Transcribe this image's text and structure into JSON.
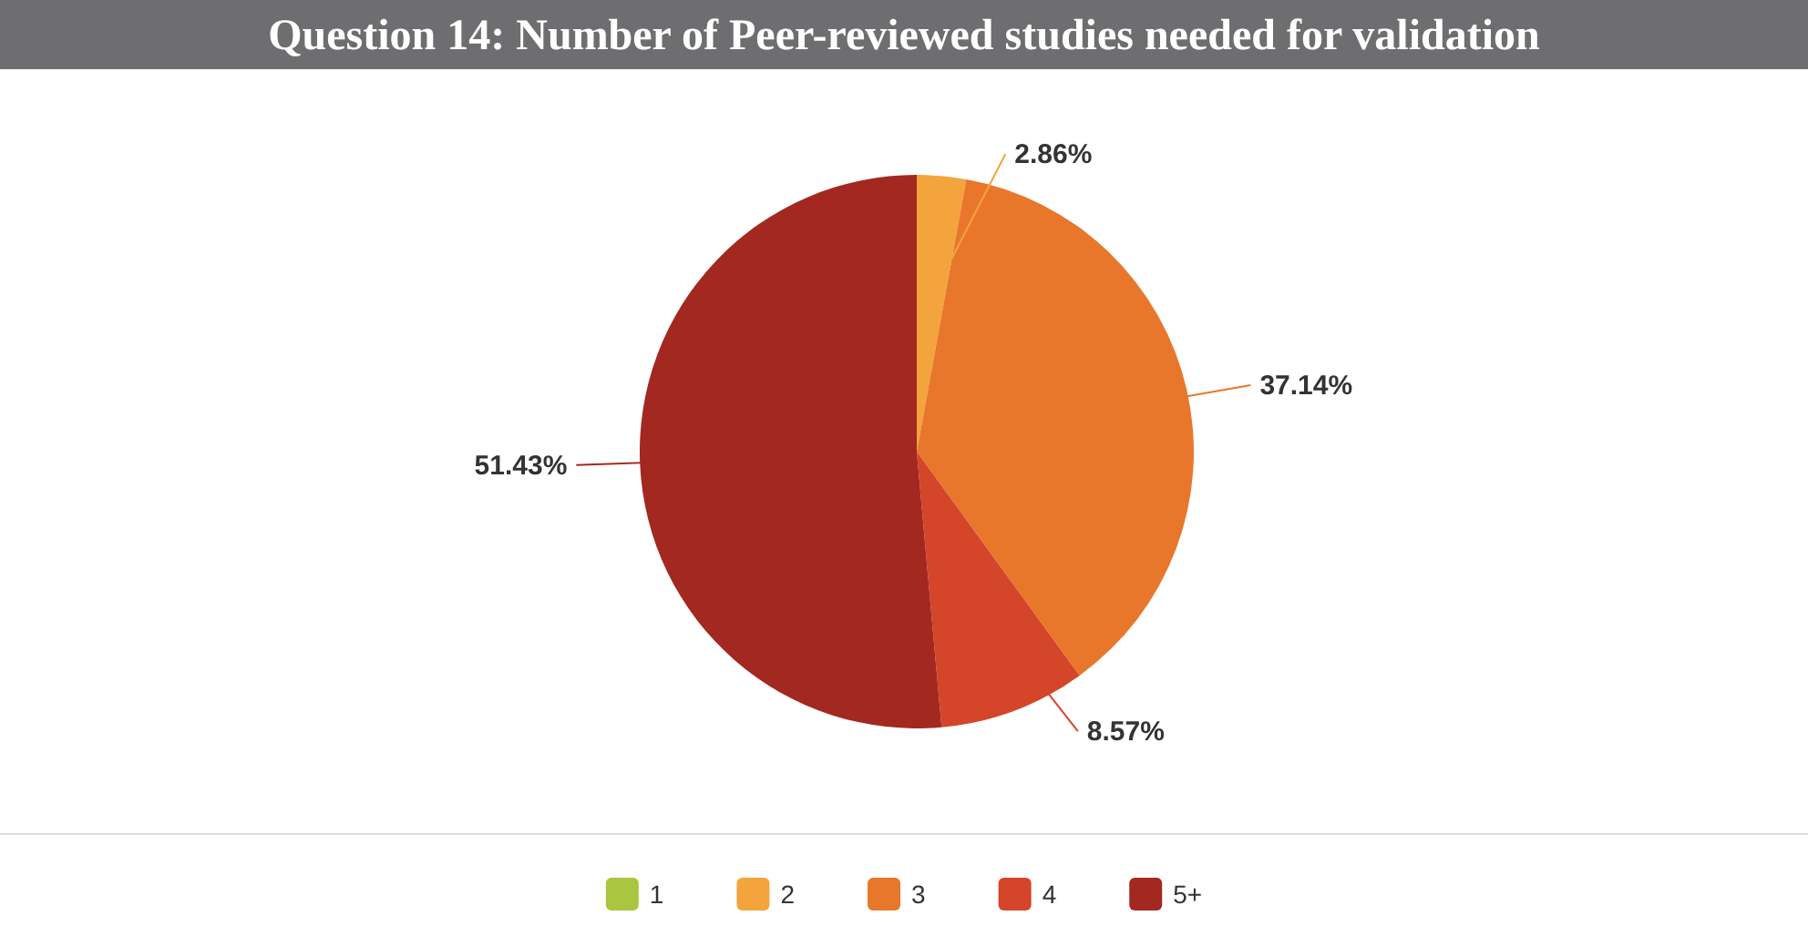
{
  "chart_data": {
    "type": "pie",
    "title": "Question 14: Number of Peer-reviewed studies needed for validation",
    "categories": [
      "1",
      "2",
      "3",
      "4",
      "5+"
    ],
    "values": [
      0,
      2.86,
      37.14,
      8.57,
      51.43
    ],
    "colors": [
      "#a9c640",
      "#f4a43c",
      "#e8772c",
      "#d4452a",
      "#a3281f"
    ],
    "value_labels": [
      null,
      "2.86%",
      "37.14%",
      "8.57%",
      "51.43%"
    ],
    "legend": "bottom"
  }
}
